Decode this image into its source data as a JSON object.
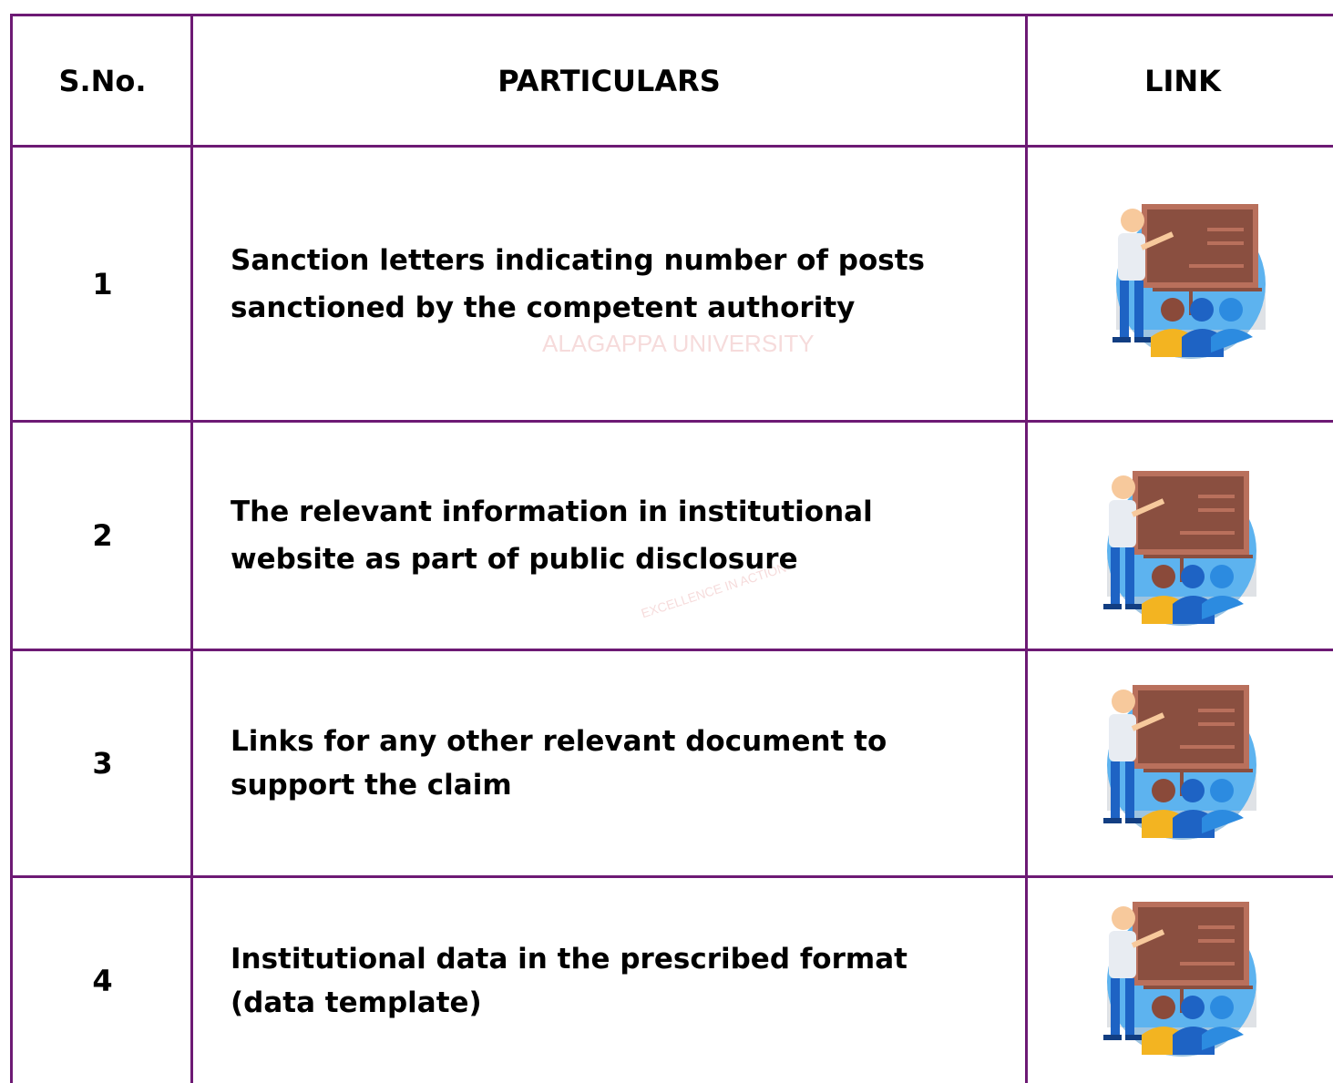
{
  "table": {
    "header": [
      "S.No.",
      "PARTICULARS",
      "LINK"
    ],
    "rows": [
      [
        "1",
        "Sanction letters indicating number of posts sanctioned by the competent authority"
      ],
      [
        "2",
        "The relevant information in institutional website as part of public disclosure"
      ],
      [
        "3",
        "Links for any other relevant document to support the claim"
      ],
      [
        "4",
        "Institutional data in the prescribed format (data template)"
      ]
    ]
  },
  "watermark": {
    "name": "ALAGAPPA UNIVERSITY",
    "motto": "EXCELLENCE IN ACTION"
  }
}
